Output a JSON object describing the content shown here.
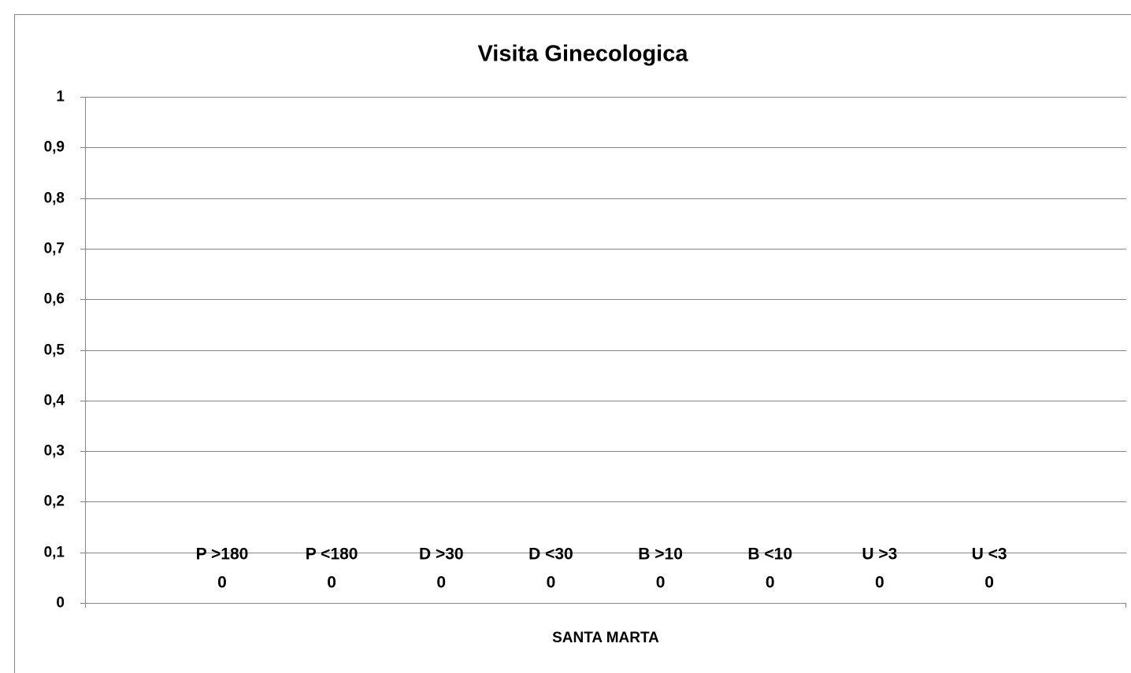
{
  "chart_data": {
    "type": "bar",
    "title": "Visita Ginecologica",
    "categories": [
      "SANTA MARTA"
    ],
    "series": [
      {
        "name": "P >180",
        "color": "#4f81bd",
        "values": [
          0
        ]
      },
      {
        "name": "P <180",
        "color": "#c0504d",
        "values": [
          0
        ]
      },
      {
        "name": "D >30",
        "color": "#9bbb59",
        "values": [
          0
        ]
      },
      {
        "name": "D <30",
        "color": "#8064a2",
        "values": [
          0
        ]
      },
      {
        "name": "B >10",
        "color": "#4bacc6",
        "values": [
          0
        ]
      },
      {
        "name": "B <10",
        "color": "#f79646",
        "values": [
          0
        ]
      },
      {
        "name": "U >3",
        "color": "#2c4d75",
        "values": [
          0
        ]
      },
      {
        "name": "U <3",
        "color": "#772c2a",
        "values": [
          0
        ]
      }
    ],
    "ylim": [
      0,
      1
    ],
    "yticks": [
      0,
      {
        "value": 0.1,
        "label": "0,1"
      },
      {
        "value": 0.2,
        "label": "0,2"
      },
      {
        "value": 0.3,
        "label": "0,3"
      },
      {
        "value": 0.4,
        "label": "0,4"
      },
      {
        "value": 0.5,
        "label": "0,5"
      },
      {
        "value": 0.6,
        "label": "0,6"
      },
      {
        "value": 0.7,
        "label": "0,7"
      },
      {
        "value": 0.8,
        "label": "0,8"
      },
      {
        "value": 0.9,
        "label": "0,9"
      },
      1
    ],
    "grid": true
  }
}
